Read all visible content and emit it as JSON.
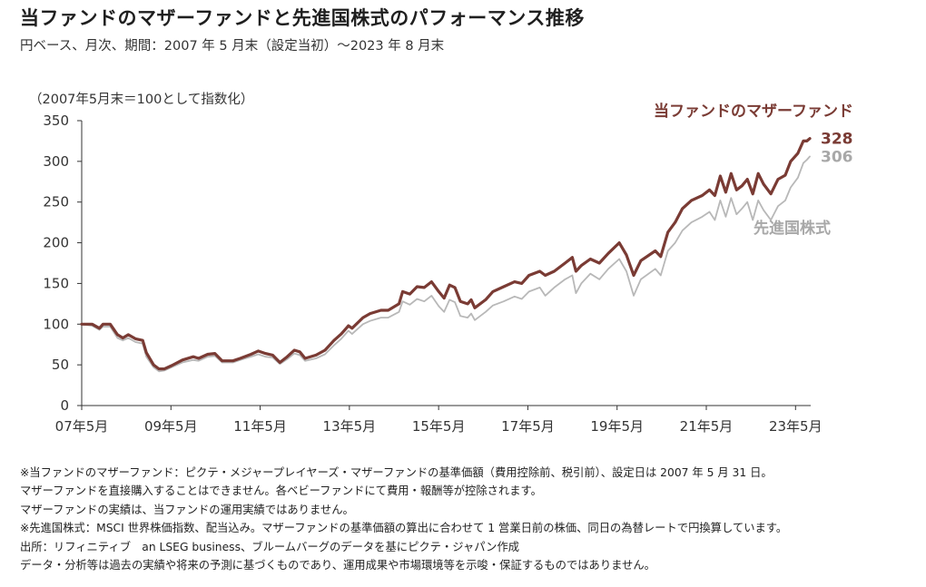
{
  "title": "当ファンドのマザーファンドと先進国株式のパフォーマンス推移",
  "subtitle": "円ベース、月次、期間：2007 年 5 月末（設定当初）～2023 年 8 月末",
  "index_note": "（2007年5月末＝100として指数化）",
  "notes": [
    "※当ファンドのマザーファンド：ピクテ・メジャープレイヤーズ・マザーファンドの基準価額（費用控除前、税引前）、設定日は 2007 年 5 月 31 日。",
    "マザーファンドを直接購入することはできません。各ベビーファンドにて費用・報酬等が控除されます。",
    "マザーファンドの実績は、当ファンドの運用実績ではありません。",
    "※先進国株式：MSCI 世界株価指数、配当込み。マザーファンドの基準価額の算出に合わせて 1 営業日前の株価、同日の為替レートで円換算しています。",
    "出所：リフィニティブ　an LSEG business、ブルームバーグのデータを基にピクテ・ジャパン作成",
    "データ・分析等は過去の実績や将来の予測に基づくものであり、運用成果や市場環境等を示唆・保証するものではありません。"
  ],
  "colors": {
    "fund": "#7a3b34",
    "index": "#b8b8b8",
    "axis": "#333333"
  },
  "chart_data": {
    "type": "line",
    "x_start": "2007-05",
    "x_end": "2023-08",
    "x_tick_labels": [
      "07年5月",
      "09年5月",
      "11年5月",
      "13年5月",
      "15年5月",
      "17年5月",
      "19年5月",
      "21年5月",
      "23年5月"
    ],
    "y_ticks": [
      0,
      50,
      100,
      150,
      200,
      250,
      300,
      350
    ],
    "ylim": [
      0,
      350
    ],
    "series": [
      {
        "name": "当ファンドのマザーファンド",
        "end_label": "328",
        "anchors": [
          [
            2007.41,
            100
          ],
          [
            2007.7,
            100
          ],
          [
            2007.9,
            95
          ],
          [
            2008.0,
            100
          ],
          [
            2008.2,
            100
          ],
          [
            2008.4,
            87
          ],
          [
            2008.55,
            83
          ],
          [
            2008.7,
            87
          ],
          [
            2008.9,
            82
          ],
          [
            2009.1,
            80
          ],
          [
            2009.2,
            65
          ],
          [
            2009.4,
            50
          ],
          [
            2009.55,
            45
          ],
          [
            2009.7,
            45
          ],
          [
            2009.9,
            49
          ],
          [
            2010.2,
            56
          ],
          [
            2010.5,
            60
          ],
          [
            2010.65,
            58
          ],
          [
            2010.9,
            63
          ],
          [
            2011.1,
            64
          ],
          [
            2011.3,
            55
          ],
          [
            2011.6,
            55
          ],
          [
            2011.8,
            58
          ],
          [
            2012.1,
            63
          ],
          [
            2012.3,
            67
          ],
          [
            2012.5,
            64
          ],
          [
            2012.7,
            62
          ],
          [
            2012.9,
            53
          ],
          [
            2013.1,
            60
          ],
          [
            2013.3,
            68
          ],
          [
            2013.45,
            66
          ],
          [
            2013.6,
            58
          ],
          [
            2013.9,
            62
          ],
          [
            2014.15,
            68
          ],
          [
            2014.4,
            80
          ],
          [
            2014.6,
            88
          ],
          [
            2014.8,
            98
          ],
          [
            2014.9,
            95
          ],
          [
            2015.2,
            108
          ],
          [
            2015.4,
            113
          ],
          [
            2015.7,
            117
          ],
          [
            2015.9,
            117
          ],
          [
            2016.2,
            125
          ],
          [
            2016.3,
            140
          ],
          [
            2016.5,
            137
          ],
          [
            2016.7,
            146
          ],
          [
            2016.9,
            145
          ],
          [
            2017.1,
            152
          ],
          [
            2017.3,
            140
          ],
          [
            2017.45,
            132
          ],
          [
            2017.6,
            148
          ],
          [
            2017.75,
            145
          ],
          [
            2017.9,
            128
          ],
          [
            2018.1,
            125
          ],
          [
            2018.2,
            130
          ],
          [
            2018.3,
            120
          ],
          [
            2018.6,
            130
          ],
          [
            2018.8,
            140
          ],
          [
            2019.1,
            146
          ],
          [
            2019.4,
            152
          ],
          [
            2019.6,
            150
          ],
          [
            2019.8,
            160
          ],
          [
            2020.1,
            165
          ],
          [
            2020.25,
            160
          ],
          [
            2020.5,
            165
          ],
          [
            2020.8,
            175
          ],
          [
            2021.0,
            182
          ],
          [
            2021.1,
            165
          ],
          [
            2021.25,
            172
          ],
          [
            2021.5,
            180
          ],
          [
            2021.75,
            175
          ],
          [
            2022.0,
            187
          ],
          [
            2022.3,
            200
          ],
          [
            2022.5,
            185
          ],
          [
            2022.7,
            160
          ],
          [
            2022.9,
            178
          ],
          [
            2023.3,
            190
          ],
          [
            2023.45,
            183
          ],
          [
            2023.65,
            213
          ],
          [
            2023.85,
            225
          ],
          [
            2024.05,
            242
          ],
          [
            2024.3,
            252
          ],
          [
            2024.6,
            258
          ],
          [
            2024.8,
            265
          ],
          [
            2024.95,
            258
          ],
          [
            2025.1,
            282
          ],
          [
            2025.25,
            262
          ],
          [
            2025.4,
            285
          ],
          [
            2025.55,
            265
          ],
          [
            2025.7,
            270
          ],
          [
            2025.85,
            278
          ],
          [
            2026.0,
            260
          ],
          [
            2026.15,
            285
          ],
          [
            2026.3,
            272
          ],
          [
            2026.5,
            260
          ],
          [
            2026.7,
            278
          ],
          [
            2026.9,
            283
          ],
          [
            2027.05,
            300
          ],
          [
            2027.25,
            310
          ],
          [
            2027.4,
            325
          ],
          [
            2027.5,
            325
          ],
          [
            2027.58,
            328
          ]
        ]
      },
      {
        "name": "先進国株式",
        "end_label": "306",
        "anchors": [
          [
            2007.41,
            100
          ],
          [
            2007.7,
            98
          ],
          [
            2007.9,
            93
          ],
          [
            2008.0,
            97
          ],
          [
            2008.2,
            97
          ],
          [
            2008.4,
            83
          ],
          [
            2008.55,
            80
          ],
          [
            2008.7,
            83
          ],
          [
            2008.9,
            78
          ],
          [
            2009.1,
            76
          ],
          [
            2009.2,
            60
          ],
          [
            2009.4,
            47
          ],
          [
            2009.55,
            42
          ],
          [
            2009.7,
            43
          ],
          [
            2009.9,
            47
          ],
          [
            2010.2,
            53
          ],
          [
            2010.5,
            56
          ],
          [
            2010.65,
            55
          ],
          [
            2010.9,
            60
          ],
          [
            2011.1,
            61
          ],
          [
            2011.3,
            53
          ],
          [
            2011.6,
            53
          ],
          [
            2011.8,
            56
          ],
          [
            2012.1,
            60
          ],
          [
            2012.3,
            63
          ],
          [
            2012.5,
            60
          ],
          [
            2012.7,
            59
          ],
          [
            2012.9,
            51
          ],
          [
            2013.1,
            57
          ],
          [
            2013.3,
            64
          ],
          [
            2013.45,
            62
          ],
          [
            2013.6,
            55
          ],
          [
            2013.9,
            58
          ],
          [
            2014.15,
            63
          ],
          [
            2014.4,
            74
          ],
          [
            2014.6,
            82
          ],
          [
            2014.8,
            92
          ],
          [
            2014.9,
            88
          ],
          [
            2015.2,
            100
          ],
          [
            2015.4,
            104
          ],
          [
            2015.7,
            108
          ],
          [
            2015.9,
            108
          ],
          [
            2016.2,
            115
          ],
          [
            2016.3,
            128
          ],
          [
            2016.5,
            124
          ],
          [
            2016.7,
            131
          ],
          [
            2016.9,
            128
          ],
          [
            2017.1,
            135
          ],
          [
            2017.3,
            122
          ],
          [
            2017.45,
            115
          ],
          [
            2017.6,
            130
          ],
          [
            2017.75,
            127
          ],
          [
            2017.9,
            110
          ],
          [
            2018.1,
            108
          ],
          [
            2018.2,
            113
          ],
          [
            2018.3,
            105
          ],
          [
            2018.6,
            115
          ],
          [
            2018.8,
            123
          ],
          [
            2019.1,
            128
          ],
          [
            2019.4,
            134
          ],
          [
            2019.6,
            131
          ],
          [
            2019.8,
            140
          ],
          [
            2020.1,
            145
          ],
          [
            2020.25,
            135
          ],
          [
            2020.5,
            145
          ],
          [
            2020.8,
            155
          ],
          [
            2021.0,
            160
          ],
          [
            2021.1,
            138
          ],
          [
            2021.25,
            150
          ],
          [
            2021.5,
            162
          ],
          [
            2021.75,
            155
          ],
          [
            2022.0,
            168
          ],
          [
            2022.3,
            180
          ],
          [
            2022.5,
            165
          ],
          [
            2022.7,
            135
          ],
          [
            2022.9,
            155
          ],
          [
            2023.3,
            168
          ],
          [
            2023.45,
            160
          ],
          [
            2023.65,
            190
          ],
          [
            2023.85,
            200
          ],
          [
            2024.05,
            215
          ],
          [
            2024.3,
            225
          ],
          [
            2024.6,
            232
          ],
          [
            2024.8,
            238
          ],
          [
            2024.95,
            228
          ],
          [
            2025.1,
            252
          ],
          [
            2025.25,
            232
          ],
          [
            2025.4,
            255
          ],
          [
            2025.55,
            235
          ],
          [
            2025.7,
            242
          ],
          [
            2025.85,
            250
          ],
          [
            2026.0,
            228
          ],
          [
            2026.15,
            252
          ],
          [
            2026.3,
            240
          ],
          [
            2026.5,
            228
          ],
          [
            2026.7,
            245
          ],
          [
            2026.9,
            252
          ],
          [
            2027.05,
            268
          ],
          [
            2027.25,
            280
          ],
          [
            2027.4,
            298
          ],
          [
            2027.5,
            302
          ],
          [
            2027.58,
            306
          ]
        ]
      }
    ]
  }
}
